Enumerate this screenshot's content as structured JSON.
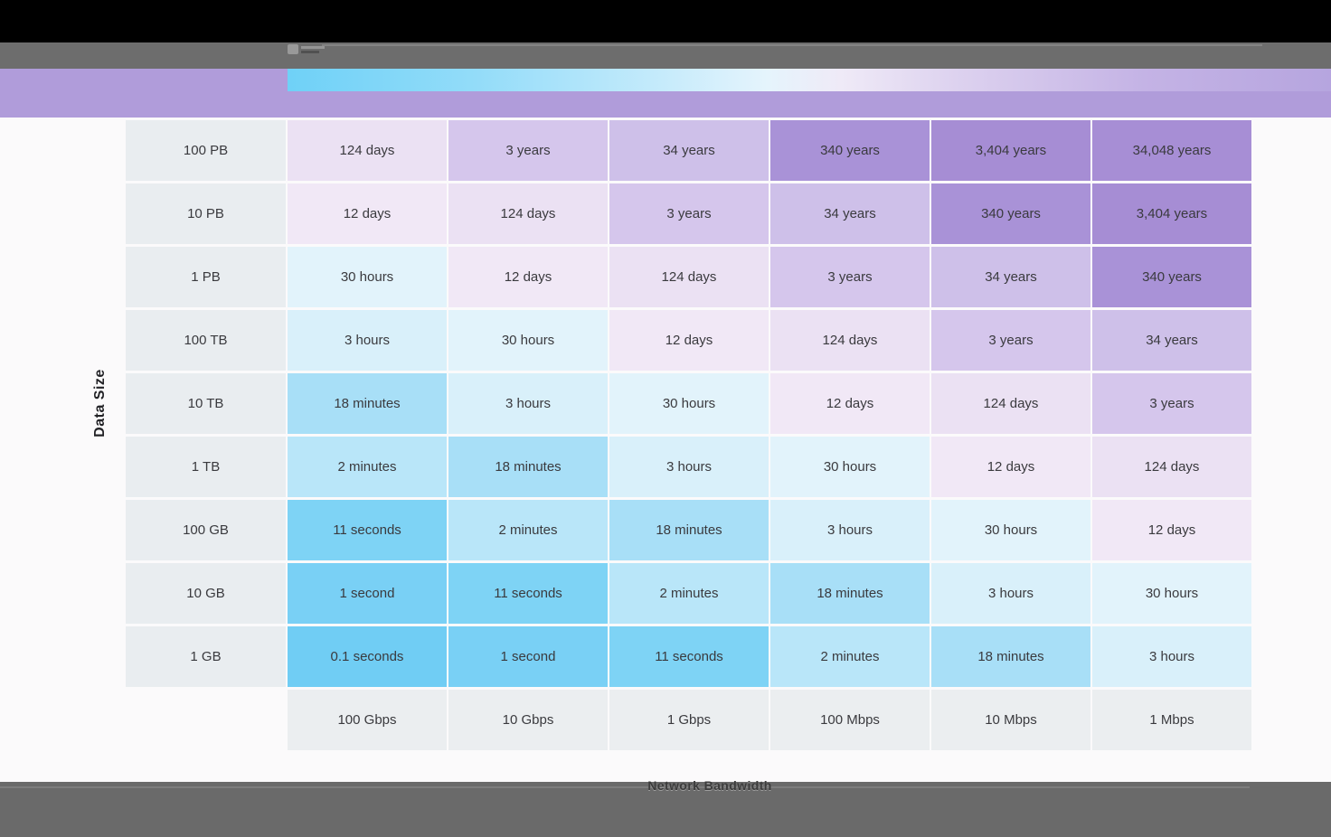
{
  "window": {
    "titlebar_color": "#000000",
    "toolbar_color": "#6d6d6d",
    "banner_color": "#b09cda",
    "statusbar_color": "#6a6a6a",
    "background_color": "#fbfafb"
  },
  "chart_data": {
    "type": "heatmap",
    "title": "",
    "xlabel": "Network Bandwidth",
    "ylabel": "Data Size",
    "row_labels": [
      "100 PB",
      "10 PB",
      "1 PB",
      "100 TB",
      "10 TB",
      "1 TB",
      "100 GB",
      "10 GB",
      "1 GB"
    ],
    "col_labels": [
      "100 Gbps",
      "10 Gbps",
      "1 Gbps",
      "100 Mbps",
      "10 Mbps",
      "1 Mbps"
    ],
    "cells": [
      [
        "124 days",
        "3 years",
        "34 years",
        "340 years",
        "3,404 years",
        "34,048 years"
      ],
      [
        "12 days",
        "124 days",
        "3 years",
        "34 years",
        "340 years",
        "3,404 years"
      ],
      [
        "30 hours",
        "12 days",
        "124 days",
        "3 years",
        "34 years",
        "340 years"
      ],
      [
        "3 hours",
        "30 hours",
        "12 days",
        "124 days",
        "3 years",
        "34 years"
      ],
      [
        "18 minutes",
        "3 hours",
        "30 hours",
        "12 days",
        "124 days",
        "3 years"
      ],
      [
        "2 minutes",
        "18 minutes",
        "3 hours",
        "30 hours",
        "12 days",
        "124 days"
      ],
      [
        "11 seconds",
        "2 minutes",
        "18 minutes",
        "3 hours",
        "30 hours",
        "12 days"
      ],
      [
        "1 second",
        "11 seconds",
        "2 minutes",
        "18 minutes",
        "3 hours",
        "30 hours"
      ],
      [
        "0.1 seconds",
        "1 second",
        "11 seconds",
        "2 minutes",
        "18 minutes",
        "3 hours"
      ]
    ],
    "color_scale": {
      "0.1 seconds": "#70cdf4",
      "1 second": "#79d0f5",
      "11 seconds": "#7ed3f5",
      "2 minutes": "#b9e6f9",
      "18 minutes": "#a8dff7",
      "3 hours": "#d9f0fa",
      "30 hours": "#e2f3fb",
      "12 days": "#f1e8f6",
      "124 days": "#ebe1f3",
      "3 years": "#d5c6ec",
      "34 years": "#cec0e9",
      "340 years": "#a992d7",
      "3,404 years": "#a68dd4",
      "34,048 years": "#a78ed5"
    },
    "legend_gradient_stops": [
      "#6fd1f7 0%",
      "#93dcf9 18%",
      "#c6ebfb 36%",
      "#e5f4fc 46%",
      "#efeaf7 53%",
      "#ddd2ef 64%",
      "#c4b3e5 82%",
      "#b6a5df 100%"
    ],
    "row_header_bg": "#e9edf0",
    "col_header_bg": "#ebeef0",
    "grid_gap_color": "#ffffff",
    "legend_position": "top"
  }
}
